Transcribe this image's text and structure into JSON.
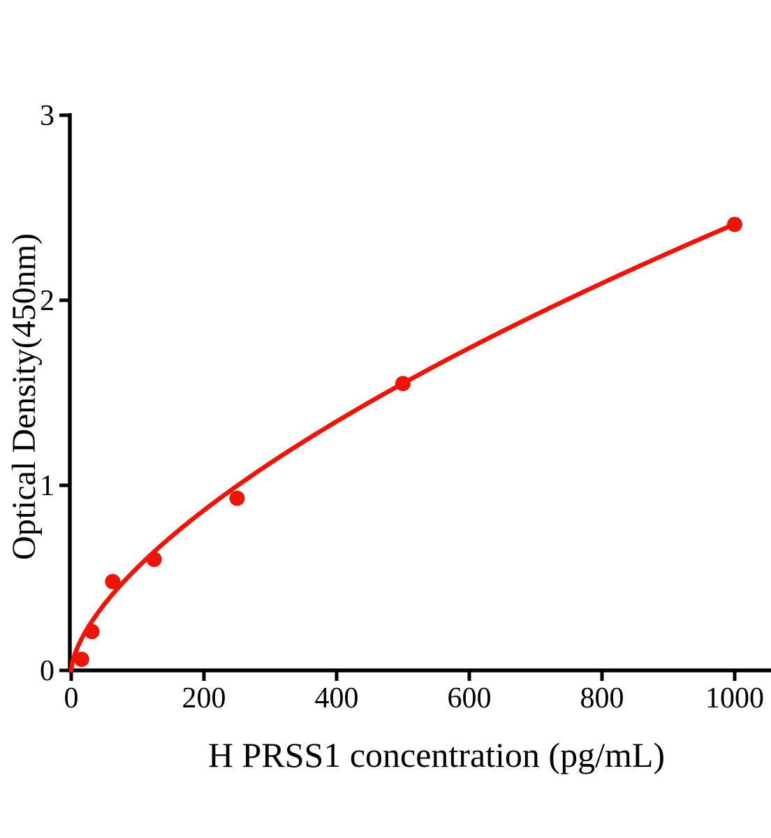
{
  "chart_data": {
    "type": "scatter",
    "title": "",
    "xlabel": "H PRSS1 concentration (pg/mL)",
    "ylabel": "Optical Density(450nm)",
    "series": [
      {
        "x": [
          15.6,
          31.2,
          62.5,
          125,
          250,
          500,
          1000
        ],
        "y": [
          0.06,
          0.21,
          0.48,
          0.6,
          0.93,
          1.55,
          2.41
        ]
      }
    ],
    "trendline": {
      "type": "power",
      "a": 0.0296,
      "b": 0.637,
      "x_min": 0,
      "x_max": 1000
    },
    "x_ticks": [
      "0",
      "200",
      "400",
      "600",
      "800",
      "1000"
    ],
    "x_tick_values": [
      0,
      200,
      400,
      600,
      800,
      1000
    ],
    "y_ticks": [
      "0",
      "1",
      "2",
      "3"
    ],
    "y_tick_values": [
      0,
      1,
      2,
      3
    ],
    "xlim": [
      0,
      1055
    ],
    "ylim": [
      0,
      3
    ],
    "grid": false,
    "legend_position": "none",
    "colors": {
      "points": "#ed1509",
      "line": "#ed1509",
      "axis": "#000000",
      "text": "#000000"
    }
  }
}
